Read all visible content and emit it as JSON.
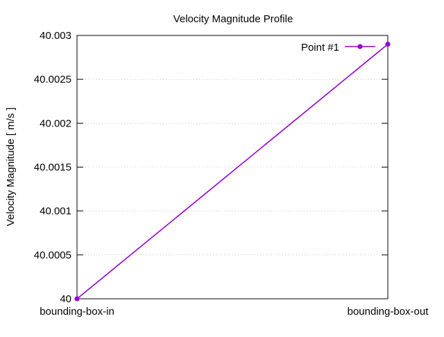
{
  "chart_data": {
    "type": "line",
    "title": "Velocity Magnitude Profile",
    "xlabel": "",
    "ylabel": "Velocity Magnitude [ m/s ]",
    "categories": [
      "bounding-box-in",
      "bounding-box-out"
    ],
    "series": [
      {
        "name": "Point #1",
        "values": [
          40.0,
          40.0029
        ],
        "color": "#9400d3",
        "marker": "filled-circle"
      }
    ],
    "ylim": [
      40.0,
      40.003
    ],
    "yticks": [
      {
        "value": 40.0,
        "label": "40"
      },
      {
        "value": 40.0005,
        "label": "40.0005"
      },
      {
        "value": 40.001,
        "label": "40.001"
      },
      {
        "value": 40.0015,
        "label": "40.0015"
      },
      {
        "value": 40.002,
        "label": "40.002"
      },
      {
        "value": 40.0025,
        "label": "40.0025"
      },
      {
        "value": 40.003,
        "label": "40.003"
      }
    ],
    "grid": true,
    "grid_style": "dotted",
    "legend_position": "top-right"
  }
}
